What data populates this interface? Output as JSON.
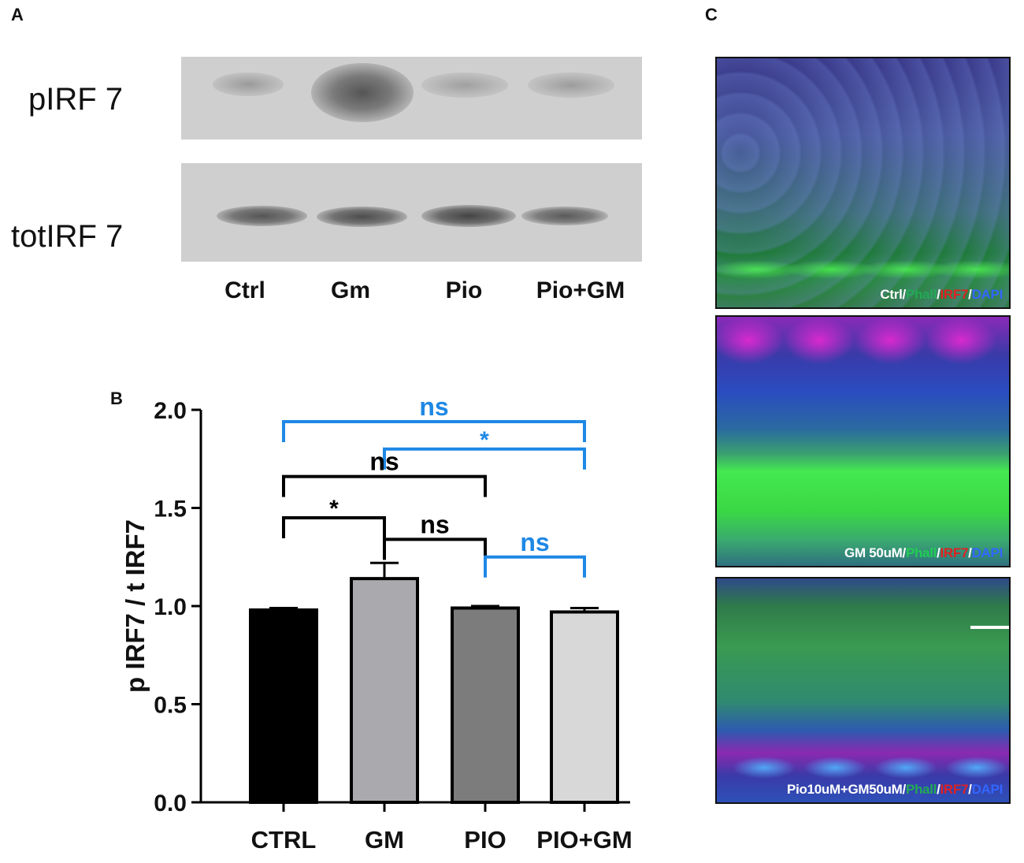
{
  "panels": {
    "a": "A",
    "b": "B",
    "c": "C"
  },
  "blot": {
    "row_labels": [
      "pIRF 7",
      "totIRF 7"
    ],
    "lanes": [
      "Ctrl",
      "Gm",
      "Pio",
      "Pio+GM"
    ],
    "bg_color": "#cfcfcf"
  },
  "micrographs": [
    {
      "caption_parts": [
        {
          "text": "Ctrl/",
          "color": "#ffffff"
        },
        {
          "text": "Phall",
          "color": "#22aa55"
        },
        {
          "text": "/",
          "color": "#ffffff"
        },
        {
          "text": "IRF7",
          "color": "#dd2222"
        },
        {
          "text": "/",
          "color": "#ffffff"
        },
        {
          "text": "DAPI",
          "color": "#3366ff"
        }
      ]
    },
    {
      "caption_parts": [
        {
          "text": "GM 50uM/",
          "color": "#ffffff"
        },
        {
          "text": "Phall",
          "color": "#22cc55"
        },
        {
          "text": "/",
          "color": "#ffffff"
        },
        {
          "text": "IRF7",
          "color": "#dd2222"
        },
        {
          "text": "/",
          "color": "#ffffff"
        },
        {
          "text": "DAPI",
          "color": "#3366ff"
        }
      ]
    },
    {
      "caption_parts": [
        {
          "text": "Pio10uM+GM50uM/",
          "color": "#ffffff"
        },
        {
          "text": "Phall",
          "color": "#22aa55"
        },
        {
          "text": "/",
          "color": "#ffffff"
        },
        {
          "text": "IRF7",
          "color": "#dd2222"
        },
        {
          "text": "/",
          "color": "#ffffff"
        },
        {
          "text": "DAPI",
          "color": "#3366ff"
        }
      ]
    }
  ],
  "chart_data": {
    "type": "bar",
    "categories": [
      "CTRL",
      "GM",
      "PIO",
      "PIO+GM"
    ],
    "values": [
      0.98,
      1.14,
      0.99,
      0.97
    ],
    "errors": [
      0.01,
      0.08,
      0.01,
      0.02
    ],
    "bar_colors": [
      "#000000",
      "#a9a9ae",
      "#7c7c7c",
      "#d8d8d8"
    ],
    "ylabel": "p IRF7 / t IRF7",
    "ylim": [
      0,
      2.0
    ],
    "yticks": [
      "0.0",
      "0.5",
      "1.0",
      "1.5",
      "2.0"
    ],
    "comparisons": [
      {
        "from": "CTRL",
        "to": "PIO+GM",
        "y": 1.94,
        "label": "ns",
        "color": "#1e88e5"
      },
      {
        "from": "GM",
        "to": "PIO+GM",
        "y": 1.8,
        "label": "*",
        "color": "#1e88e5"
      },
      {
        "from": "CTRL",
        "to": "PIO",
        "y": 1.66,
        "label": "ns",
        "color": "#000000"
      },
      {
        "from": "CTRL",
        "to": "GM",
        "y": 1.45,
        "label": "*",
        "color": "#000000"
      },
      {
        "from": "GM",
        "to": "PIO",
        "y": 1.34,
        "label": "ns",
        "color": "#000000"
      },
      {
        "from": "PIO",
        "to": "PIO+GM",
        "y": 1.25,
        "label": "ns",
        "color": "#1e88e5"
      }
    ]
  }
}
